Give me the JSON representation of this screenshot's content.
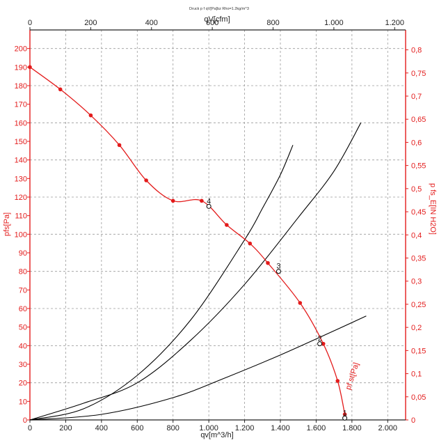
{
  "chart_data": {
    "type": "line",
    "title": "Druck p f qV[Pa]bz Rho=1.2kg/m^3",
    "xlabel": "qv[m^3/h]",
    "x2label": "qV[cfm]",
    "ylabel": "pfs[Pa]",
    "y2label": "p fs_E[IN H2O]",
    "xlim": [
      0,
      2100
    ],
    "ylim": [
      0,
      210
    ],
    "x2lim": [
      0,
      1236
    ],
    "y2lim": [
      0,
      0.843
    ],
    "x_ticks": [
      "0",
      "200",
      "400",
      "600",
      "800",
      "1.000",
      "1.200",
      "1.400",
      "1.600",
      "1.800",
      "2.000"
    ],
    "y_ticks": [
      "0",
      "10",
      "20",
      "30",
      "40",
      "50",
      "60",
      "70",
      "80",
      "90",
      "100",
      "110",
      "120",
      "130",
      "140",
      "150",
      "160",
      "170",
      "180",
      "190",
      "200"
    ],
    "x2_ticks": [
      "0",
      "200",
      "400",
      "600",
      "800",
      "1.000",
      "1.200"
    ],
    "y2_ticks": [
      "0",
      "0,05",
      "0,1",
      "0,15",
      "0,2",
      "0,25",
      "0,3",
      "0,35",
      "0,4",
      "0,45",
      "0,5",
      "0,55",
      "0,6",
      "0,65",
      "0,7",
      "0,75",
      "0,8"
    ],
    "grid": true,
    "fan_curve": {
      "label": "pfs[Pa]",
      "color": "#e31b1b",
      "points": [
        [
          0,
          190
        ],
        [
          170,
          178
        ],
        [
          340,
          164
        ],
        [
          500,
          148
        ],
        [
          650,
          129
        ],
        [
          800,
          118
        ],
        [
          960,
          118
        ],
        [
          1100,
          105
        ],
        [
          1230,
          95
        ],
        [
          1330,
          84.5
        ],
        [
          1510,
          63
        ],
        [
          1640,
          41
        ],
        [
          1720,
          21
        ],
        [
          1760,
          3
        ]
      ]
    },
    "system_curves": [
      {
        "color": "#000000",
        "points": [
          [
            0,
            0
          ],
          [
            300,
            6
          ],
          [
            600,
            24
          ],
          [
            900,
            54
          ],
          [
            1200,
            97
          ],
          [
            1300,
            114
          ],
          [
            1400,
            132
          ],
          [
            1470,
            148
          ]
        ]
      },
      {
        "color": "#000000",
        "points": [
          [
            0,
            0
          ],
          [
            300,
            9
          ],
          [
            600,
            20
          ],
          [
            900,
            43
          ],
          [
            1200,
            73
          ],
          [
            1500,
            109
          ],
          [
            1700,
            134
          ],
          [
            1850,
            160
          ]
        ]
      },
      {
        "color": "#000000",
        "points": [
          [
            0,
            0
          ],
          [
            400,
            3
          ],
          [
            800,
            12
          ],
          [
            1100,
            23
          ],
          [
            1400,
            35
          ],
          [
            1700,
            48
          ],
          [
            1880,
            56
          ]
        ]
      }
    ],
    "operating_points": [
      {
        "label": "4",
        "x": 1000,
        "y": 115
      },
      {
        "label": "3",
        "x": 1390,
        "y": 80
      },
      {
        "label": "2",
        "x": 1620,
        "y": 41
      },
      {
        "label": "1",
        "x": 1760,
        "y": 1
      }
    ],
    "annotation": "pf st[Pa]"
  }
}
